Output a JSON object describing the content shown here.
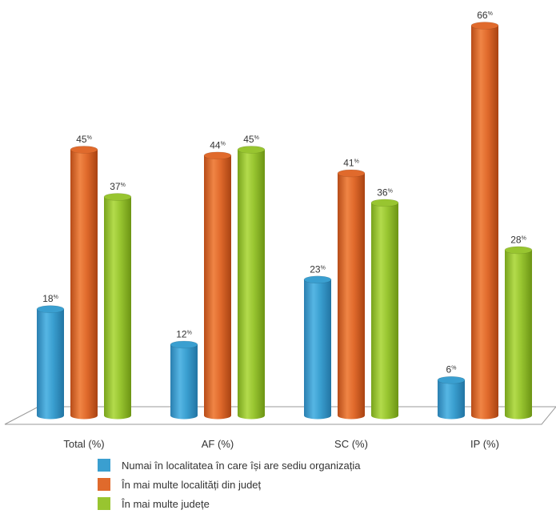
{
  "chart_data": {
    "type": "bar",
    "style": "3d-cylinder",
    "categories": [
      "Total (%)",
      "AF (%)",
      "SC (%)",
      "IP (%)"
    ],
    "series": [
      {
        "name": "Numai în localitatea în care își are sediu organizația",
        "color": "#3a9fd0",
        "values": [
          18,
          12,
          23,
          6
        ]
      },
      {
        "name": "În mai multe localități din județ",
        "color": "#e06a2c",
        "values": [
          45,
          44,
          41,
          66
        ]
      },
      {
        "name": "În mai multe județe",
        "color": "#98c530",
        "values": [
          37,
          45,
          36,
          28
        ]
      }
    ],
    "value_suffix": "%",
    "ylim": [
      0,
      66
    ],
    "grid": false,
    "legend": "bottom"
  }
}
